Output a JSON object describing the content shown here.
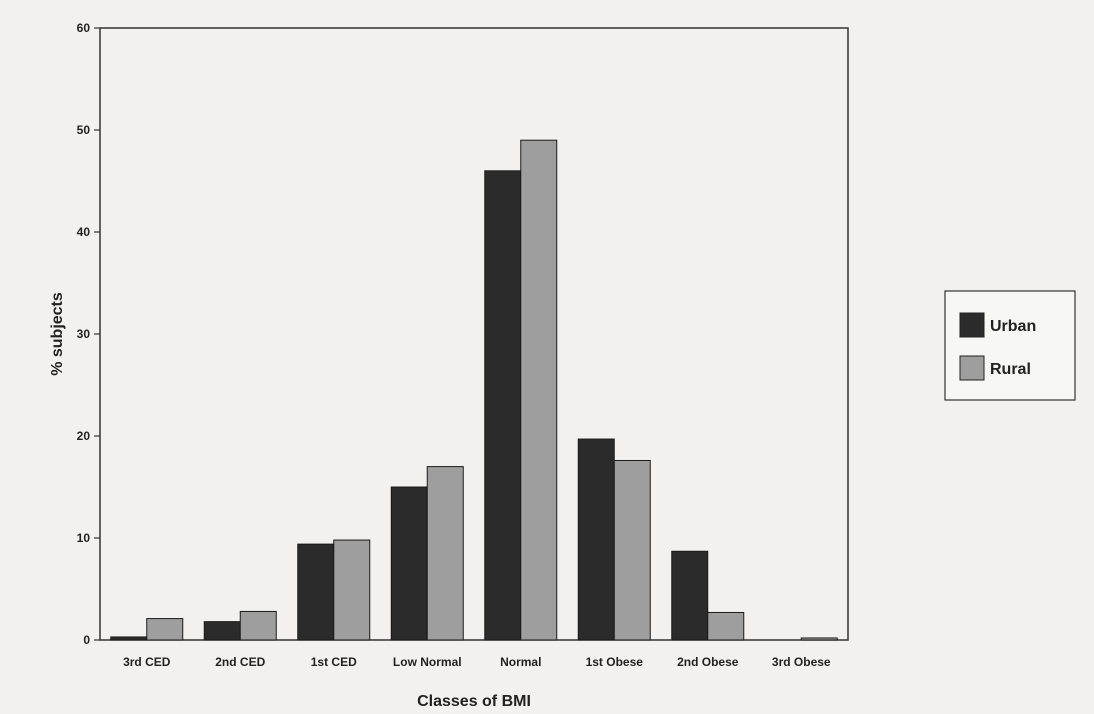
{
  "chart_data": {
    "type": "bar",
    "title": "",
    "xlabel": "Classes of BMI",
    "ylabel": "% subjects",
    "ylim": [
      0,
      60
    ],
    "yticks": [
      0,
      10,
      20,
      30,
      40,
      50,
      60
    ],
    "grid": false,
    "legend_position": "right",
    "categories": [
      "3rd CED",
      "2nd CED",
      "1st CED",
      "Low Normal",
      "Normal",
      "1st Obese",
      "2nd Obese",
      "3rd Obese"
    ],
    "series": [
      {
        "name": "Urban",
        "color": "#2b2b2b",
        "values": [
          0.3,
          1.8,
          9.4,
          15.0,
          46.0,
          19.7,
          8.7,
          0
        ]
      },
      {
        "name": "Rural",
        "color": "#9e9e9e",
        "values": [
          2.1,
          2.8,
          9.8,
          17.0,
          49.0,
          17.6,
          2.7,
          0.2
        ]
      }
    ]
  }
}
